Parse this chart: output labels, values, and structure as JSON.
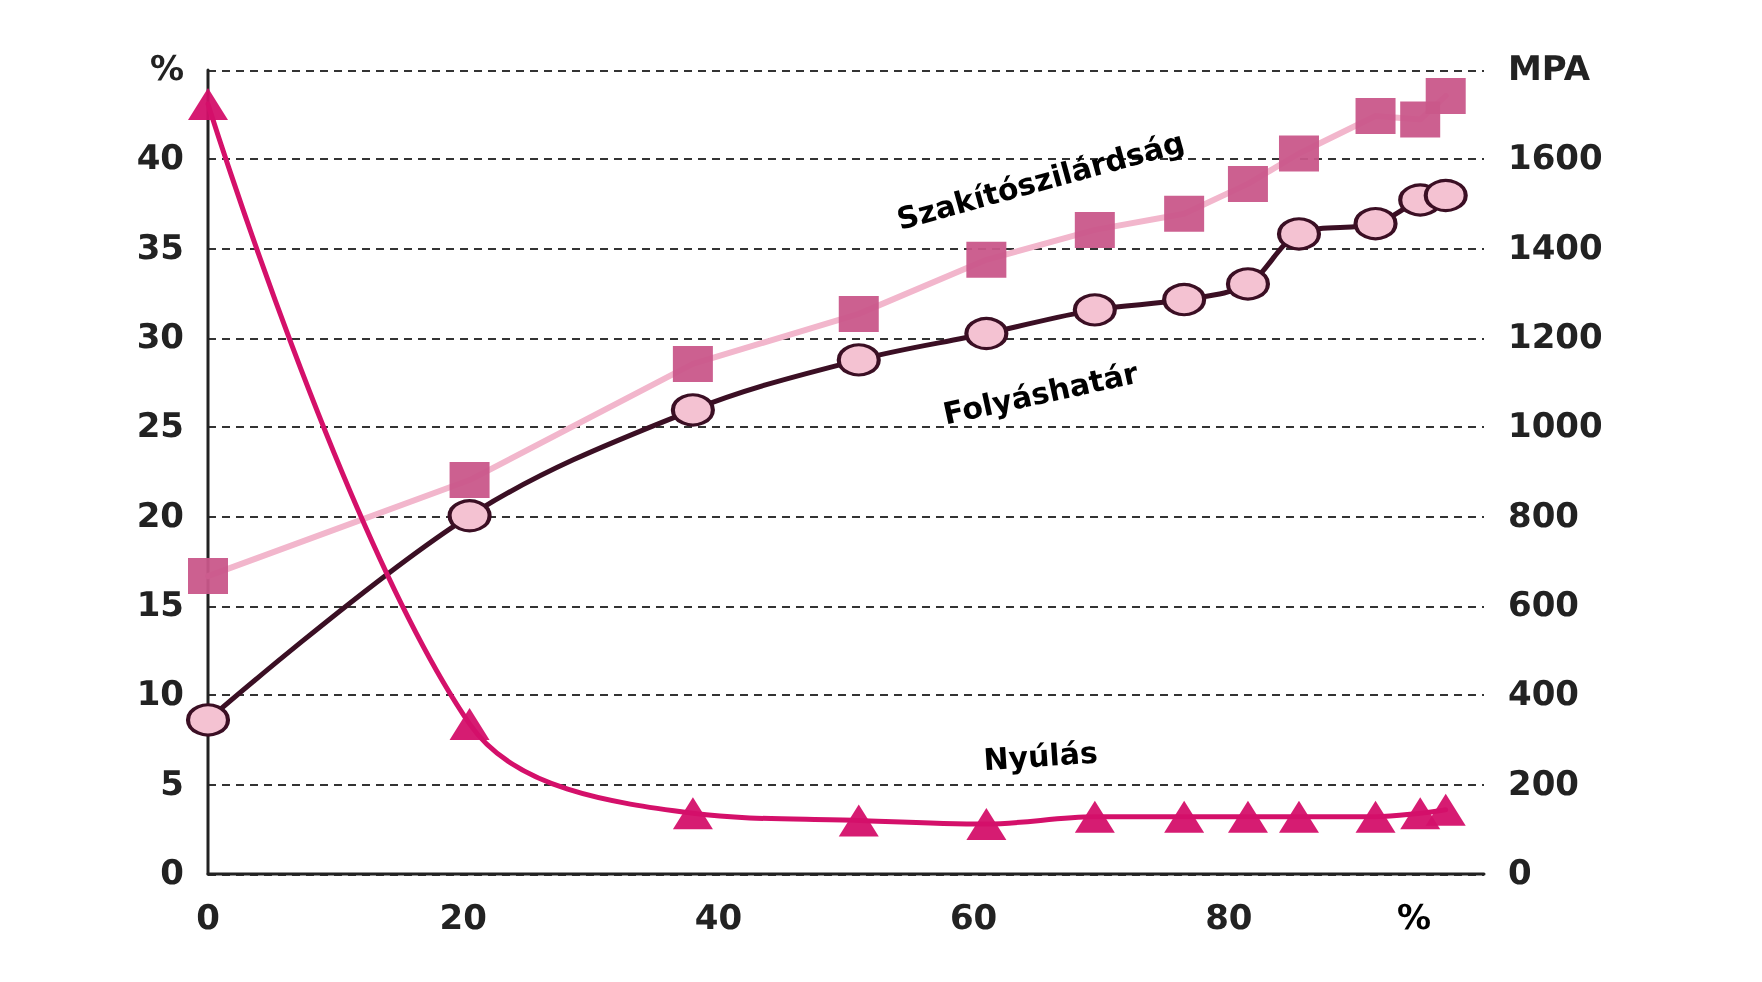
{
  "chart_data": {
    "type": "line",
    "ylabel": null,
    "x": [
      0,
      20.5,
      38,
      51,
      61,
      69.5,
      76.5,
      81.5,
      85.5,
      91.5,
      95,
      97
    ],
    "series": [
      {
        "name": "Szakítószilárdság",
        "color": "#c9578a",
        "marker": "square",
        "axis": "y2",
        "values": [
          667,
          882,
          1142,
          1254,
          1375,
          1442,
          1478,
          1545,
          1613,
          1697,
          1689,
          1742
        ]
      },
      {
        "name": "Folyáshatár",
        "color": "#3b0f24",
        "marker": "circle",
        "axis": "y2",
        "values": [
          345,
          802,
          1039,
          1151,
          1210,
          1263,
          1286,
          1321,
          1433,
          1456,
          1509,
          1519
        ]
      },
      {
        "name": "Nyúlás",
        "color": "#d4106a",
        "marker": "triangle",
        "values": [
          43.1,
          8.4,
          3.4,
          3.0,
          2.8,
          3.2,
          3.2,
          3.2,
          3.2,
          3.2,
          3.4,
          3.6
        ]
      }
    ],
    "xlabel": "%",
    "xlim": [
      0,
      100
    ],
    "xticks": [
      0,
      20,
      40,
      60,
      80
    ],
    "ylim": [
      0,
      45
    ],
    "yticks": [
      0,
      5,
      10,
      15,
      20,
      25,
      30,
      35,
      40,
      {
        "value": 45,
        "label": "%"
      }
    ],
    "y2lim": [
      0,
      1800
    ],
    "y2ticks": [
      0,
      200,
      400,
      600,
      800,
      1000,
      1200,
      1400,
      1600,
      {
        "value": 1800,
        "label": "MPA"
      }
    ],
    "grid": "y",
    "line_style": "solid"
  }
}
